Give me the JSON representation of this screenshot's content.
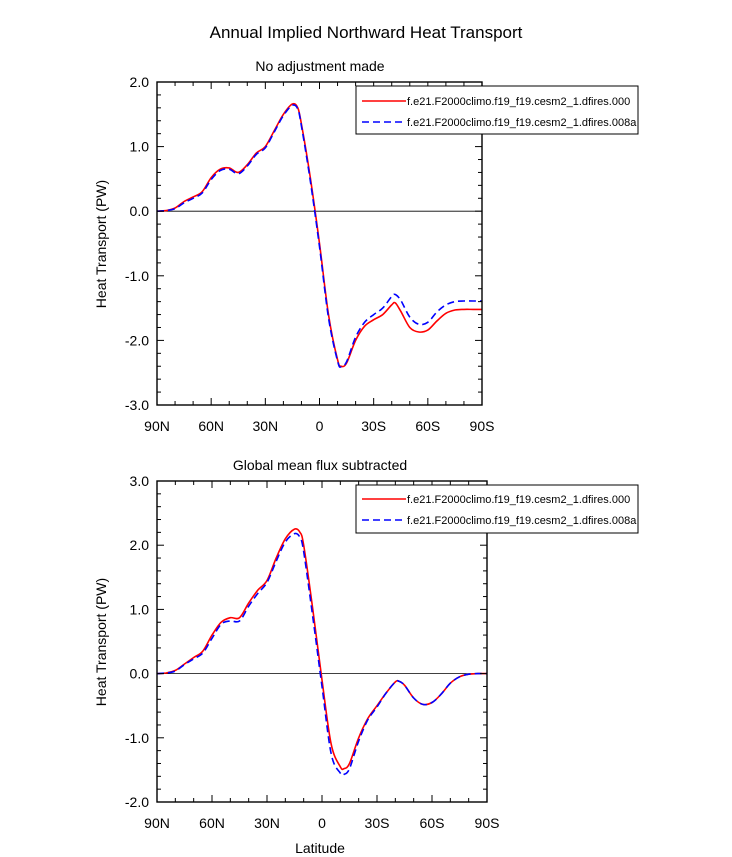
{
  "figure_title": "Annual Implied Northward Heat Transport",
  "colors": {
    "case_a": "#ff0000",
    "case_b": "#0000ff",
    "axis": "#000000",
    "zero_line": "#000000"
  },
  "chart_data": [
    {
      "type": "line",
      "title": "No adjustment made",
      "xlabel": "",
      "ylabel": "Heat Transport (PW)",
      "xlim": [
        90,
        -90
      ],
      "ylim": [
        -3.0,
        2.0
      ],
      "xticks": [
        90,
        60,
        30,
        0,
        -30,
        -60,
        -90
      ],
      "xticklabels": [
        "90N",
        "60N",
        "30N",
        "0",
        "30S",
        "60S",
        "90S"
      ],
      "yticks": [
        2.0,
        1.0,
        0.0,
        -1.0,
        -2.0,
        -3.0
      ],
      "yticklabels": [
        "2.0",
        "1.0",
        "0.0",
        "-1.0",
        "-2.0",
        "-3.0"
      ],
      "grid": false,
      "legend_position": "top-right",
      "x": [
        90,
        85,
        80,
        75,
        70,
        65,
        60,
        55,
        50,
        45,
        40,
        35,
        30,
        25,
        20,
        15,
        12,
        10,
        5,
        0,
        -5,
        -10,
        -12,
        -15,
        -20,
        -25,
        -30,
        -35,
        -40,
        -42,
        -45,
        -50,
        -55,
        -60,
        -65,
        -70,
        -75,
        -80,
        -85,
        -90
      ],
      "series": [
        {
          "name": "f.e21.F2000climo.f19_f19.cesm2_1.dfires.000",
          "color": "#ff0000",
          "dash": "solid",
          "values": [
            0.0,
            0.01,
            0.05,
            0.15,
            0.22,
            0.3,
            0.52,
            0.65,
            0.67,
            0.6,
            0.72,
            0.9,
            1.0,
            1.25,
            1.5,
            1.66,
            1.6,
            1.35,
            0.5,
            -0.5,
            -1.6,
            -2.3,
            -2.4,
            -2.35,
            -2.0,
            -1.78,
            -1.68,
            -1.6,
            -1.45,
            -1.42,
            -1.55,
            -1.8,
            -1.87,
            -1.84,
            -1.7,
            -1.58,
            -1.53,
            -1.52,
            -1.52,
            -1.52
          ]
        },
        {
          "name": "f.e21.F2000climo.f19_f19.cesm2_1.dfires.008a",
          "color": "#0000ff",
          "dash": "dashed",
          "values": [
            0.0,
            0.01,
            0.04,
            0.13,
            0.2,
            0.28,
            0.49,
            0.63,
            0.65,
            0.58,
            0.7,
            0.88,
            0.98,
            1.23,
            1.48,
            1.64,
            1.58,
            1.32,
            0.45,
            -0.55,
            -1.65,
            -2.32,
            -2.41,
            -2.33,
            -1.95,
            -1.72,
            -1.6,
            -1.5,
            -1.32,
            -1.29,
            -1.38,
            -1.64,
            -1.75,
            -1.72,
            -1.56,
            -1.45,
            -1.4,
            -1.39,
            -1.39,
            -1.39
          ]
        }
      ]
    },
    {
      "type": "line",
      "title": "Global mean flux subtracted",
      "xlabel": "Latitude",
      "ylabel": "Heat Transport (PW)",
      "xlim": [
        90,
        -90
      ],
      "ylim": [
        -2.0,
        3.0
      ],
      "xticks": [
        90,
        60,
        30,
        0,
        -30,
        -60,
        -90
      ],
      "xticklabels": [
        "90N",
        "60N",
        "30N",
        "0",
        "30S",
        "60S",
        "90S"
      ],
      "yticks": [
        3.0,
        2.0,
        1.0,
        0.0,
        -1.0,
        -2.0
      ],
      "yticklabels": [
        "3.0",
        "2.0",
        "1.0",
        "0.0",
        "-1.0",
        "-2.0"
      ],
      "grid": false,
      "legend_position": "top-right",
      "x": [
        90,
        85,
        80,
        75,
        70,
        65,
        60,
        55,
        50,
        45,
        40,
        35,
        30,
        25,
        20,
        15,
        12,
        10,
        5,
        0,
        -5,
        -10,
        -12,
        -15,
        -20,
        -25,
        -30,
        -35,
        -40,
        -42,
        -45,
        -50,
        -55,
        -60,
        -65,
        -70,
        -75,
        -80,
        -85,
        -90
      ],
      "series": [
        {
          "name": "f.e21.F2000climo.f19_f19.cesm2_1.dfires.000",
          "color": "#ff0000",
          "dash": "solid",
          "values": [
            0.0,
            0.01,
            0.05,
            0.15,
            0.25,
            0.35,
            0.6,
            0.8,
            0.87,
            0.87,
            1.1,
            1.3,
            1.45,
            1.8,
            2.1,
            2.25,
            2.2,
            2.0,
            1.0,
            -0.1,
            -1.1,
            -1.45,
            -1.48,
            -1.4,
            -1.0,
            -0.7,
            -0.5,
            -0.3,
            -0.13,
            -0.12,
            -0.18,
            -0.38,
            -0.48,
            -0.45,
            -0.32,
            -0.15,
            -0.05,
            -0.01,
            0.0,
            0.0
          ]
        },
        {
          "name": "f.e21.F2000climo.f19_f19.cesm2_1.dfires.008a",
          "color": "#0000ff",
          "dash": "dashed",
          "values": [
            0.0,
            0.01,
            0.04,
            0.14,
            0.23,
            0.32,
            0.55,
            0.77,
            0.82,
            0.82,
            1.05,
            1.25,
            1.42,
            1.75,
            2.05,
            2.18,
            2.12,
            1.9,
            0.88,
            -0.2,
            -1.25,
            -1.55,
            -1.57,
            -1.48,
            -1.05,
            -0.72,
            -0.52,
            -0.3,
            -0.13,
            -0.12,
            -0.18,
            -0.38,
            -0.48,
            -0.45,
            -0.32,
            -0.15,
            -0.05,
            -0.01,
            0.0,
            0.0
          ]
        }
      ]
    }
  ]
}
